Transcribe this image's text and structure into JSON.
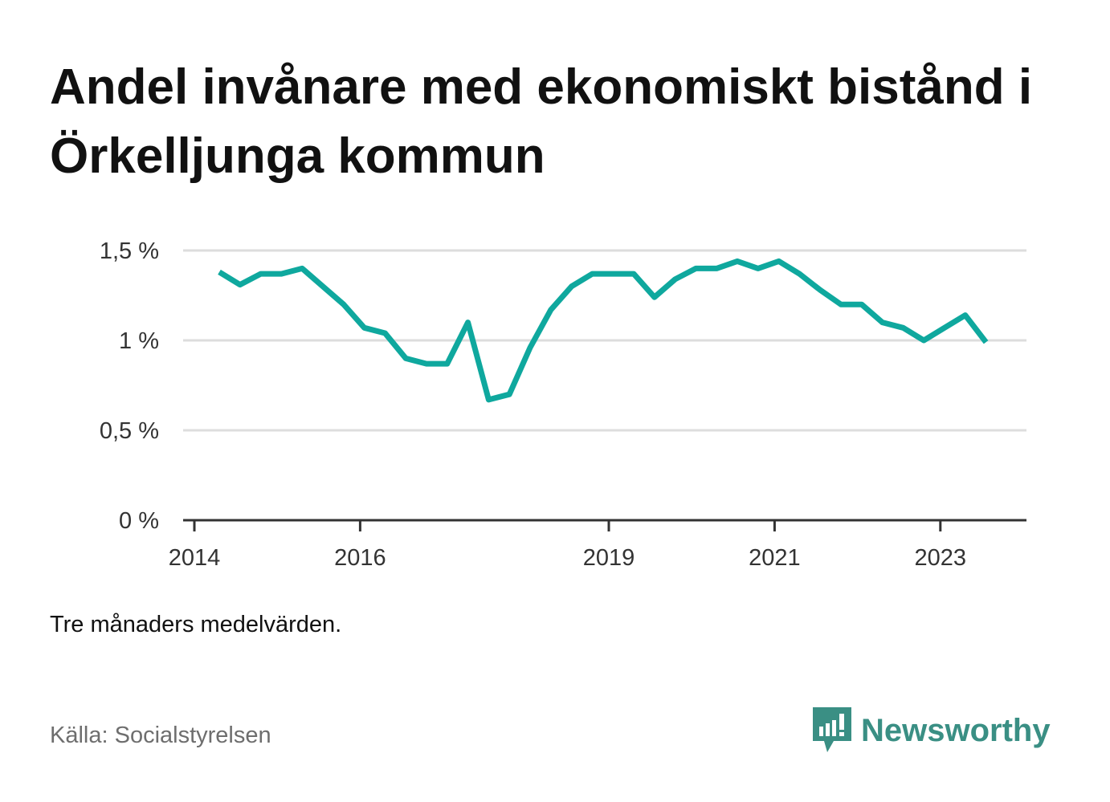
{
  "title": "Andel invånare med ekonomiskt bistånd i Örkelljunga kommun",
  "note": "Tre månaders medelvärden.",
  "source": "Källa: Socialstyrelsen",
  "brand": "Newsworthy",
  "colors": {
    "line": "#0fa89e",
    "brand": "#3a8f84",
    "grid": "#dddddd",
    "axis": "#333333"
  },
  "chart_data": {
    "type": "line",
    "title": "Andel invånare med ekonomiskt bistånd i Örkelljunga kommun",
    "xlabel": "",
    "ylabel": "",
    "ylim": [
      0,
      1.5
    ],
    "xlim": [
      2014,
      2024.0
    ],
    "grid": true,
    "y_ticks": [
      {
        "value": 0,
        "label": "0 %"
      },
      {
        "value": 0.5,
        "label": "0,5 %"
      },
      {
        "value": 1,
        "label": "1 %"
      },
      {
        "value": 1.5,
        "label": "1,5 %"
      }
    ],
    "x_ticks": [
      {
        "value": 2014,
        "label": "2014"
      },
      {
        "value": 2016,
        "label": "2016"
      },
      {
        "value": 2019,
        "label": "2019"
      },
      {
        "value": 2021,
        "label": "2021"
      },
      {
        "value": 2023,
        "label": "2023"
      }
    ],
    "series": [
      {
        "x": [
          2014.3,
          2014.55,
          2014.8,
          2015.05,
          2015.3,
          2015.55,
          2015.8,
          2016.05,
          2016.3,
          2016.55,
          2016.8,
          2017.05,
          2017.3,
          2017.55,
          2017.8,
          2018.05,
          2018.3,
          2018.55,
          2018.8,
          2019.05,
          2019.3,
          2019.55,
          2019.8,
          2020.05,
          2020.3,
          2020.55,
          2020.8,
          2021.05,
          2021.3,
          2021.55,
          2021.8,
          2022.05,
          2022.3,
          2022.55,
          2022.8,
          2023.05,
          2023.3,
          2023.55
        ],
        "values": [
          1.38,
          1.31,
          1.37,
          1.37,
          1.4,
          1.3,
          1.2,
          1.07,
          1.04,
          0.9,
          0.87,
          0.87,
          1.1,
          0.67,
          0.7,
          0.96,
          1.17,
          1.3,
          1.37,
          1.37,
          1.37,
          1.24,
          1.34,
          1.4,
          1.4,
          1.44,
          1.4,
          1.44,
          1.37,
          1.28,
          1.2,
          1.2,
          1.1,
          1.07,
          1.0,
          1.07,
          1.14,
          0.99
        ]
      }
    ]
  }
}
